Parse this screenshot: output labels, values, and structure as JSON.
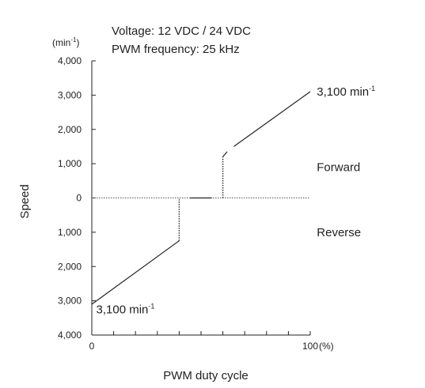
{
  "chart_data": {
    "type": "line",
    "title_lines": [
      "Voltage: 12 VDC / 24 VDC",
      "PWM frequency: 25 kHz"
    ],
    "xlabel": "PWM duty cycle",
    "x_unit": "(%)",
    "ylabel": "Speed",
    "y_unit_prefix": "(min",
    "y_unit_sup": "-1",
    "y_unit_suffix": ")",
    "xlim": [
      0,
      100
    ],
    "ylim": [
      -4000,
      4000
    ],
    "x_ticks": [
      0,
      10,
      20,
      30,
      40,
      50,
      60,
      70,
      80,
      90,
      100
    ],
    "x_tick_labels": [
      {
        "x": 0,
        "label": "0"
      },
      {
        "x": 100,
        "label": "100"
      }
    ],
    "y_ticks": [
      4000,
      3000,
      2000,
      1000,
      0,
      -1000,
      -2000,
      -3000,
      -4000
    ],
    "y_tick_labels": [
      "4,000",
      "3,000",
      "2,000",
      "1,000",
      "0",
      "1,000",
      "2,000",
      "3,000",
      "4,000"
    ],
    "grid": false,
    "series": [
      {
        "name": "Forward",
        "style": "solid",
        "points": [
          [
            65,
            1500
          ],
          [
            100,
            3100
          ]
        ]
      },
      {
        "name": "Forward",
        "style": "solid",
        "points": [
          [
            60,
            1200
          ],
          [
            62,
            1350
          ]
        ]
      },
      {
        "name": "Forward",
        "style": "dotted",
        "points": [
          [
            60,
            0
          ],
          [
            60,
            1200
          ]
        ]
      },
      {
        "name": "Reverse",
        "style": "solid",
        "points": [
          [
            0,
            -3100
          ],
          [
            40,
            -1250
          ]
        ]
      },
      {
        "name": "Reverse",
        "style": "dotted",
        "points": [
          [
            40,
            -1250
          ],
          [
            40,
            0
          ]
        ]
      },
      {
        "style": "solid",
        "points": [
          [
            45,
            0
          ],
          [
            55,
            0
          ]
        ]
      }
    ],
    "zero_line": {
      "style": "dotted",
      "y": 0,
      "x": [
        0,
        100
      ]
    },
    "annotations": [
      {
        "text": "3,100 min",
        "sup": "-1",
        "x": 103,
        "y": 3100,
        "anchor": "start"
      },
      {
        "text": "3,100 min",
        "sup": "-1",
        "x": 2,
        "y": -3250,
        "anchor": "start"
      },
      {
        "text": "Forward",
        "x": 103,
        "y": 900,
        "anchor": "start"
      },
      {
        "text": "Reverse",
        "x": 103,
        "y": -1000,
        "anchor": "start"
      }
    ]
  }
}
